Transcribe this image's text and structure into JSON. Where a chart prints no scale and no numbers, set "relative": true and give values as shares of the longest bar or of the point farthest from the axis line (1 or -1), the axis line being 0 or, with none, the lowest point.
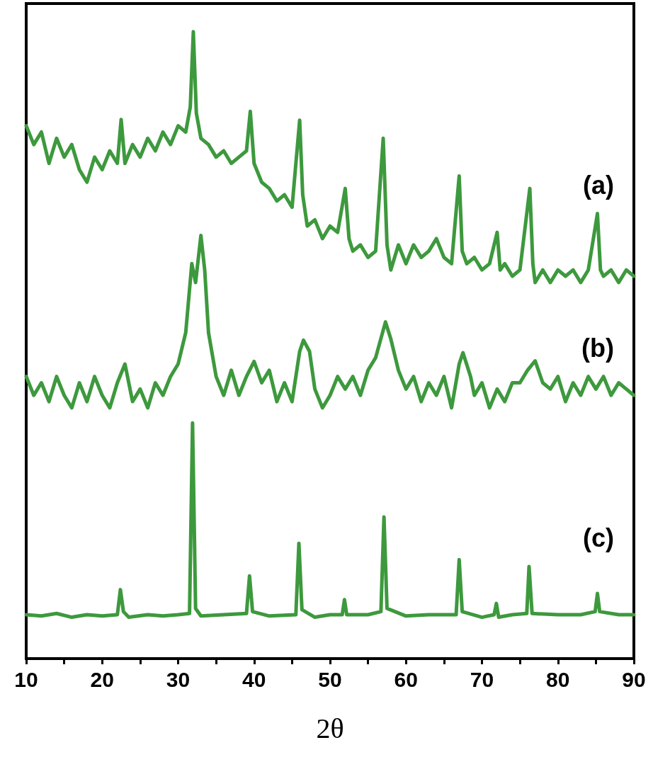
{
  "chart_data": {
    "type": "line",
    "relative": true,
    "xlabel": "2θ",
    "xlim": [
      10,
      90
    ],
    "xticks": [
      10,
      {
        "value": 15,
        "label": null
      },
      20,
      {
        "value": 25,
        "label": null
      },
      30,
      {
        "value": 35,
        "label": null
      },
      40,
      {
        "value": 45,
        "label": null
      },
      50,
      {
        "value": 55,
        "label": null
      },
      60,
      {
        "value": 65,
        "label": null
      },
      70,
      {
        "value": 75,
        "label": null
      },
      80,
      {
        "value": 85,
        "label": null
      },
      90
    ],
    "grid": false,
    "legend": false,
    "marker": "none",
    "line_style": "solid",
    "series": [
      {
        "name": "(a)",
        "color": "#3d993d",
        "x": [
          10,
          11,
          12,
          13,
          14,
          15,
          16,
          17,
          18,
          19,
          20,
          21,
          22,
          22.5,
          23,
          24,
          25,
          26,
          27,
          28,
          29,
          30,
          31,
          31.6,
          32,
          32.4,
          33,
          34,
          35,
          36,
          37,
          38,
          39,
          39.5,
          40,
          41,
          42,
          43,
          44,
          45,
          46,
          46.4,
          47,
          48,
          49,
          50,
          51,
          52,
          52.5,
          53,
          54,
          55,
          56,
          57,
          57.5,
          58,
          59,
          60,
          61,
          62,
          63,
          64,
          65,
          66,
          67,
          67.4,
          68,
          69,
          70,
          71,
          72,
          72.4,
          73,
          74,
          75,
          76.3,
          76.7,
          77,
          78,
          79,
          80,
          81,
          82,
          83,
          84,
          85.2,
          85.6,
          86,
          87,
          88,
          89,
          90
        ],
        "values": [
          0.85,
          0.82,
          0.84,
          0.79,
          0.83,
          0.8,
          0.82,
          0.78,
          0.76,
          0.8,
          0.78,
          0.81,
          0.79,
          0.86,
          0.79,
          0.82,
          0.8,
          0.83,
          0.81,
          0.84,
          0.82,
          0.85,
          0.84,
          0.88,
          1.0,
          0.87,
          0.83,
          0.82,
          0.8,
          0.81,
          0.79,
          0.8,
          0.81,
          0.873,
          0.79,
          0.76,
          0.75,
          0.73,
          0.74,
          0.72,
          0.859,
          0.74,
          0.69,
          0.7,
          0.67,
          0.69,
          0.68,
          0.75,
          0.67,
          0.65,
          0.66,
          0.64,
          0.65,
          0.83,
          0.66,
          0.62,
          0.66,
          0.63,
          0.66,
          0.64,
          0.65,
          0.67,
          0.64,
          0.63,
          0.77,
          0.65,
          0.63,
          0.64,
          0.62,
          0.63,
          0.68,
          0.62,
          0.63,
          0.61,
          0.62,
          0.75,
          0.63,
          0.6,
          0.62,
          0.6,
          0.62,
          0.61,
          0.62,
          0.6,
          0.62,
          0.71,
          0.62,
          0.61,
          0.62,
          0.6,
          0.62,
          0.61
        ]
      },
      {
        "name": "(b)",
        "color": "#3d993d",
        "x": [
          10,
          11,
          12,
          13,
          14,
          15,
          16,
          17,
          18,
          19,
          20,
          21,
          22,
          23,
          24,
          25,
          26,
          27,
          28,
          29,
          30,
          31,
          31.8,
          32.3,
          33,
          33.5,
          34,
          35,
          36,
          37,
          38,
          39,
          40,
          41,
          42,
          43,
          44,
          45,
          46,
          46.5,
          47.3,
          48,
          49,
          50,
          51,
          52,
          53,
          54,
          55,
          56,
          57.3,
          58,
          59,
          60,
          61,
          62,
          63,
          64,
          65,
          66,
          67,
          67.5,
          68.5,
          69,
          70,
          71,
          72,
          73,
          74,
          75,
          76,
          77,
          78,
          79,
          80,
          81,
          82,
          83,
          84,
          85,
          86,
          87,
          88,
          89,
          90
        ],
        "values": [
          0.45,
          0.42,
          0.44,
          0.41,
          0.45,
          0.42,
          0.4,
          0.44,
          0.41,
          0.45,
          0.42,
          0.4,
          0.44,
          0.47,
          0.41,
          0.43,
          0.4,
          0.44,
          0.42,
          0.45,
          0.47,
          0.52,
          0.63,
          0.6,
          0.675,
          0.62,
          0.52,
          0.45,
          0.42,
          0.46,
          0.42,
          0.45,
          0.474,
          0.44,
          0.46,
          0.41,
          0.44,
          0.41,
          0.49,
          0.508,
          0.49,
          0.43,
          0.4,
          0.42,
          0.45,
          0.43,
          0.45,
          0.42,
          0.46,
          0.48,
          0.537,
          0.51,
          0.46,
          0.43,
          0.45,
          0.41,
          0.44,
          0.42,
          0.45,
          0.4,
          0.47,
          0.488,
          0.45,
          0.42,
          0.44,
          0.4,
          0.43,
          0.41,
          0.44,
          0.44,
          0.46,
          0.475,
          0.44,
          0.43,
          0.45,
          0.41,
          0.44,
          0.42,
          0.45,
          0.43,
          0.45,
          0.42,
          0.44,
          0.43,
          0.42
        ]
      },
      {
        "name": "(c)",
        "color": "#3d993d",
        "x": [
          10,
          12,
          14,
          16,
          18,
          20,
          22,
          22.4,
          22.8,
          23.5,
          26,
          28,
          30,
          31.5,
          31.9,
          32.3,
          33,
          36,
          39,
          39.4,
          39.8,
          42,
          45.5,
          45.9,
          46.3,
          48,
          50,
          51.6,
          51.9,
          52.2,
          55,
          56.7,
          57.1,
          57.5,
          60,
          63,
          66.6,
          67,
          67.4,
          70,
          71.6,
          71.9,
          72.2,
          74,
          75.9,
          76.2,
          76.6,
          80,
          83,
          84.9,
          85.2,
          85.5,
          88,
          90
        ],
        "values": [
          0.07,
          0.068,
          0.072,
          0.066,
          0.07,
          0.068,
          0.07,
          0.11,
          0.075,
          0.066,
          0.07,
          0.068,
          0.07,
          0.072,
          0.376,
          0.08,
          0.068,
          0.07,
          0.072,
          0.132,
          0.075,
          0.068,
          0.07,
          0.184,
          0.078,
          0.066,
          0.07,
          0.07,
          0.094,
          0.07,
          0.07,
          0.075,
          0.226,
          0.08,
          0.068,
          0.07,
          0.07,
          0.158,
          0.075,
          0.066,
          0.07,
          0.088,
          0.066,
          0.07,
          0.072,
          0.147,
          0.072,
          0.07,
          0.07,
          0.075,
          0.104,
          0.075,
          0.07,
          0.07
        ]
      }
    ]
  }
}
